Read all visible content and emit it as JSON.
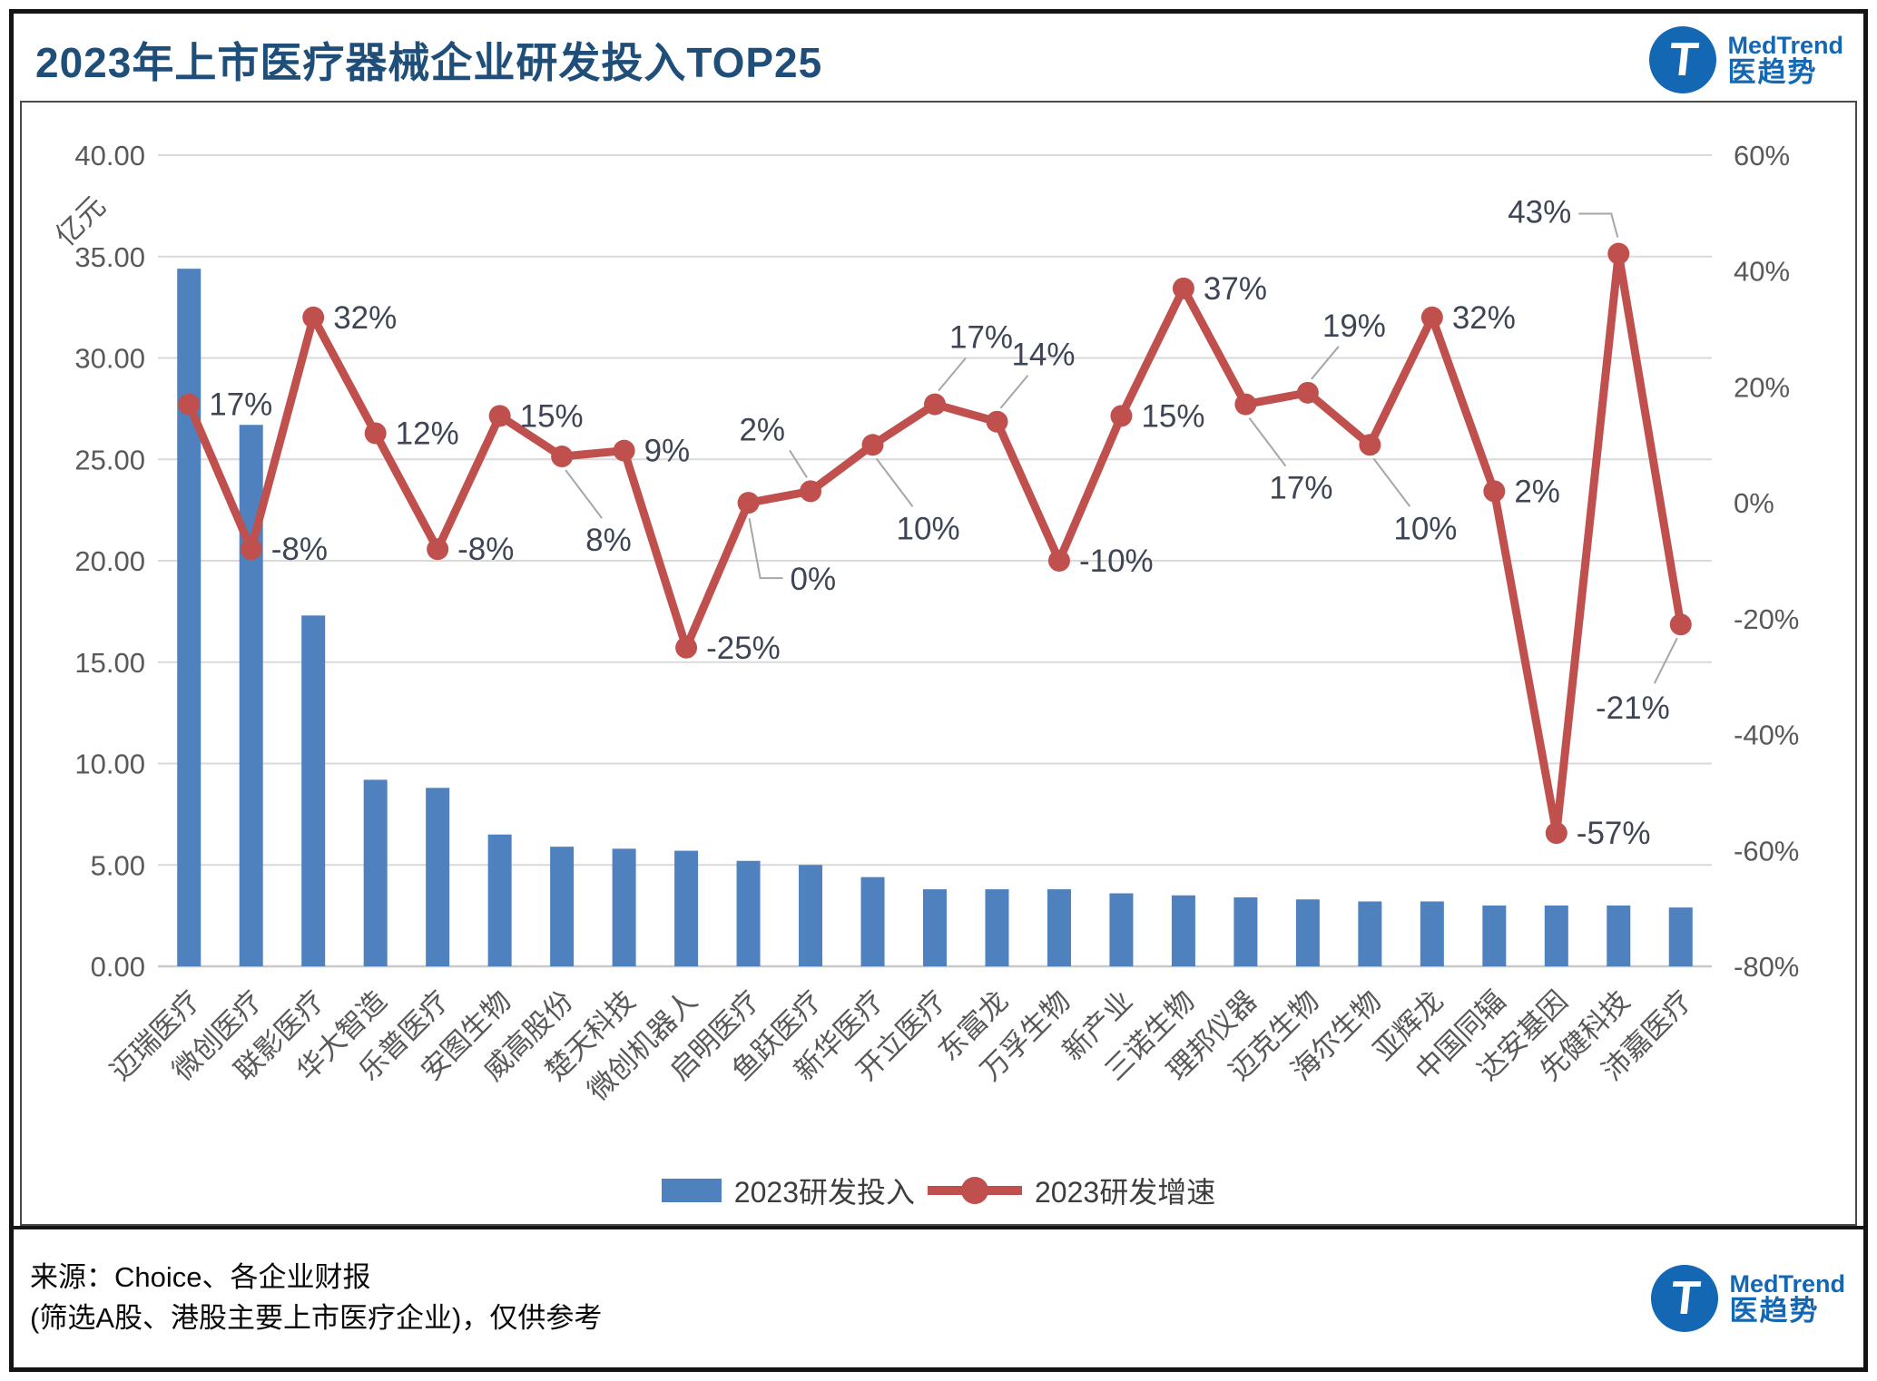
{
  "title": "2023年上市医疗器械企业研发投入TOP25",
  "logo": {
    "t": "T",
    "name_en": "MedTrend",
    "name_zh": "医趋势"
  },
  "footer": {
    "line1": "来源：Choice、各企业财报",
    "line2": "(筛选A股、港股主要上市医疗企业)，仅供参考"
  },
  "colors": {
    "title": "#1f4e79",
    "bar": "#4e81bd",
    "line": "#c0504d",
    "grid": "#d9d9d9",
    "axis": "#c8c8c8",
    "tick": "#595959",
    "data_label": "#3e4555",
    "leader": "#a6a6a6",
    "logo_blue": "#1467b3"
  },
  "chart_data": {
    "type": "bar+line combo",
    "unit_label": "亿元",
    "categories": [
      "迈瑞医疗",
      "微创医疗",
      "联影医疗",
      "华大智造",
      "乐普医疗",
      "安图生物",
      "威高股份",
      "楚天科技",
      "微创机器人",
      "启明医疗",
      "鱼跃医疗",
      "新华医疗",
      "开立医疗",
      "东富龙",
      "万孚生物",
      "新产业",
      "三诺生物",
      "理邦仪器",
      "迈克生物",
      "海尔生物",
      "亚辉龙",
      "中国同辐",
      "达安基因",
      "先健科技",
      "沛嘉医疗"
    ],
    "series": [
      {
        "name": "2023研发投入",
        "type": "bar",
        "axis": "left",
        "unit": "亿元",
        "values": [
          34.4,
          26.7,
          17.3,
          9.2,
          8.8,
          6.5,
          5.9,
          5.8,
          5.7,
          5.2,
          5.0,
          4.4,
          3.8,
          3.8,
          3.8,
          3.6,
          3.5,
          3.4,
          3.3,
          3.2,
          3.2,
          3.0,
          3.0,
          3.0,
          2.9
        ]
      },
      {
        "name": "2023研发增速",
        "type": "line",
        "axis": "right",
        "unit": "%",
        "values": [
          17,
          -8,
          32,
          12,
          -8,
          15,
          8,
          9,
          -25,
          0,
          2,
          10,
          17,
          14,
          -10,
          15,
          37,
          17,
          19,
          10,
          32,
          2,
          -57,
          43,
          -21
        ],
        "labels": [
          "17%",
          "-8%",
          "32%",
          "12%",
          "-8%",
          "15%",
          "8%",
          "9%",
          "-25%",
          "0%",
          "2%",
          "10%",
          "17%",
          "14%",
          "-10%",
          "15%",
          "37%",
          "17%",
          "19%",
          "10%",
          "32%",
          "2%",
          "-57%",
          "43%",
          "-21%"
        ]
      }
    ],
    "left_axis": {
      "ticks": [
        "40.00",
        "35.00",
        "30.00",
        "25.00",
        "20.00",
        "15.00",
        "10.00",
        "5.00",
        "0.00"
      ],
      "min": 0,
      "max": 40
    },
    "right_axis": {
      "ticks": [
        "60%",
        "40%",
        "20%",
        "0%",
        "-20%",
        "-40%",
        "-60%",
        "-80%"
      ],
      "min": -80,
      "max": 60
    },
    "legend": [
      "2023研发投入",
      "2023研发增速"
    ],
    "grid": true,
    "legend_position": "bottom-center"
  }
}
